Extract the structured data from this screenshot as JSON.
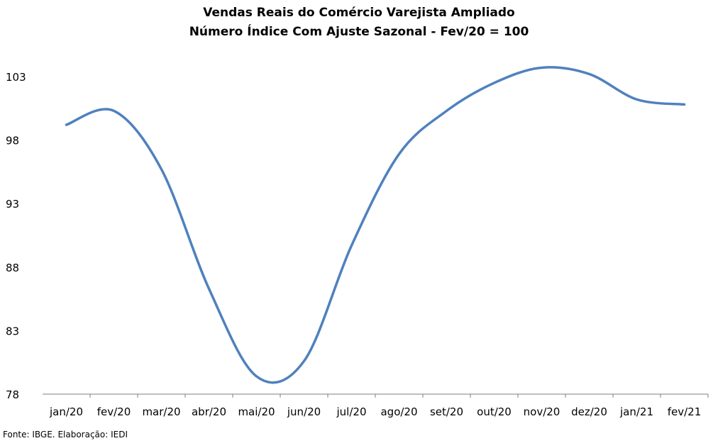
{
  "chart_data": {
    "type": "line",
    "title": "Vendas Reais do Comércio Varejista Ampliado",
    "subtitle": "Número Índice Com Ajuste Sazonal - Fev/20 = 100",
    "categories": [
      "jan/20",
      "fev/20",
      "mar/20",
      "abr/20",
      "mai/20",
      "jun/20",
      "jul/20",
      "ago/20",
      "set/20",
      "out/20",
      "nov/20",
      "dez/20",
      "jan/21",
      "fev/21"
    ],
    "series": [
      {
        "values": [
          99.2,
          100.3,
          95.7,
          86.3,
          79.4,
          80.6,
          89.7,
          96.9,
          100.3,
          102.5,
          103.7,
          103.2,
          101.2,
          100.8
        ]
      }
    ],
    "y_ticks": [
      78,
      83,
      88,
      93,
      98,
      103
    ],
    "ylim": [
      78,
      103
    ],
    "xlabel": "",
    "ylabel": "",
    "grid": false,
    "line_color": "#4f81bd"
  },
  "source": "Fonte: IBGE. Elaboração: IEDI"
}
